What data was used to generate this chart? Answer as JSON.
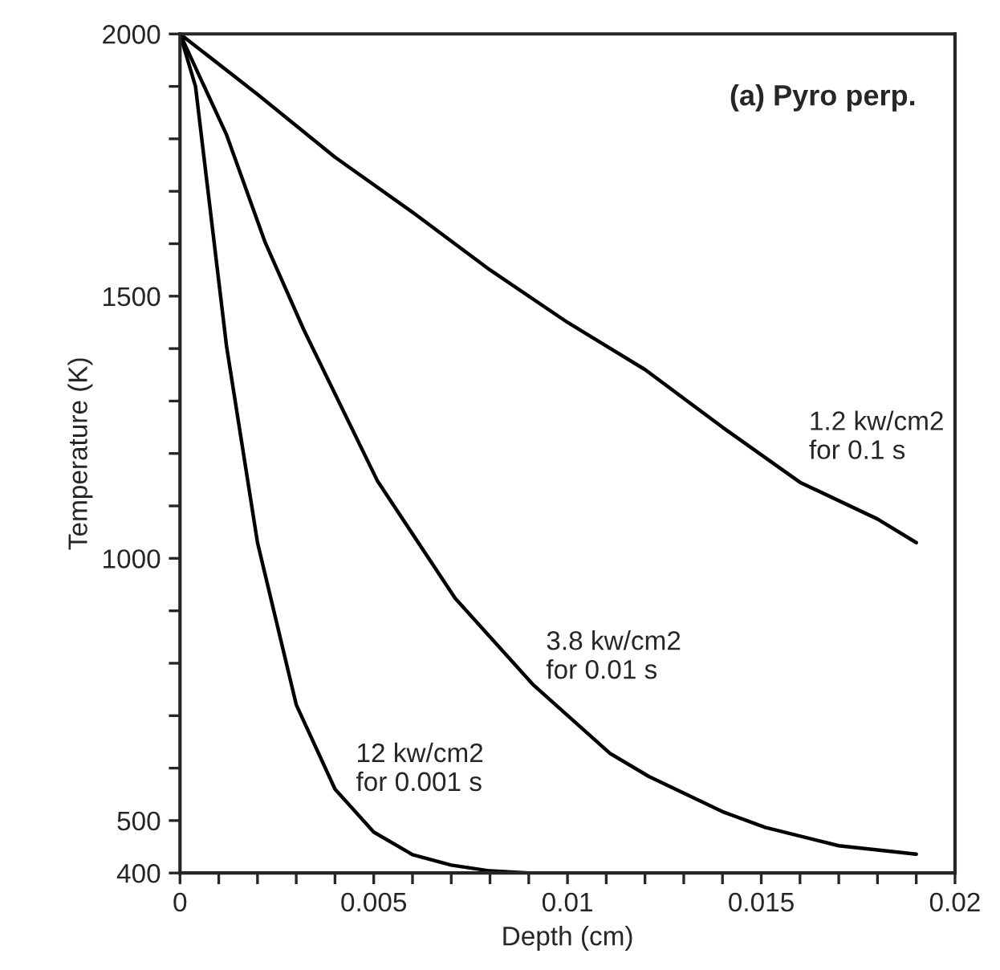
{
  "chart_data": {
    "type": "line",
    "title": "(a) Pyro perp.",
    "xlabel": "Depth (cm)",
    "ylabel": "Temperature (K)",
    "xlim": [
      0,
      0.02
    ],
    "ylim": [
      400,
      2000
    ],
    "xticks": [
      0,
      {
        "value": 0.001,
        "label": null
      },
      {
        "value": 0.002,
        "label": null
      },
      {
        "value": 0.003,
        "label": null
      },
      {
        "value": 0.004,
        "label": null
      },
      0.005,
      {
        "value": 0.006,
        "label": null
      },
      {
        "value": 0.007,
        "label": null
      },
      {
        "value": 0.008,
        "label": null
      },
      {
        "value": 0.009,
        "label": null
      },
      0.01,
      {
        "value": 0.011,
        "label": null
      },
      {
        "value": 0.012,
        "label": null
      },
      {
        "value": 0.013,
        "label": null
      },
      {
        "value": 0.014,
        "label": null
      },
      0.015,
      {
        "value": 0.016,
        "label": null
      },
      {
        "value": 0.017,
        "label": null
      },
      {
        "value": 0.018,
        "label": null
      },
      {
        "value": 0.019,
        "label": null
      },
      0.02
    ],
    "yticks": [
      400,
      500,
      {
        "value": 600,
        "label": null
      },
      {
        "value": 700,
        "label": null
      },
      {
        "value": 800,
        "label": null
      },
      {
        "value": 900,
        "label": null
      },
      1000,
      {
        "value": 1100,
        "label": null
      },
      {
        "value": 1200,
        "label": null
      },
      {
        "value": 1300,
        "label": null
      },
      {
        "value": 1400,
        "label": null
      },
      1500,
      {
        "value": 1600,
        "label": null
      },
      {
        "value": 1700,
        "label": null
      },
      {
        "value": 1800,
        "label": null
      },
      {
        "value": 1900,
        "label": null
      },
      2000
    ],
    "grid": false,
    "legend": false,
    "marker": "none",
    "line_style": "solid",
    "series": [
      {
        "name": "1.2 kw/cm2\nfor 0.1 s",
        "color": "#000000",
        "x": [
          0,
          0.002,
          0.004,
          0.006,
          0.008,
          0.01,
          0.012,
          0.014,
          0.016,
          0.018,
          0.019
        ],
        "values": [
          2000,
          1885,
          1765,
          1660,
          1550,
          1450,
          1360,
          1250,
          1145,
          1075,
          1030
        ]
      },
      {
        "name": "3.8 kw/cm2\nfor 0.01 s",
        "color": "#000000",
        "x": [
          0,
          0.0012,
          0.0022,
          0.0032,
          0.0051,
          0.0071,
          0.0091,
          0.0111,
          0.0121,
          0.014,
          0.0151,
          0.017,
          0.019
        ],
        "values": [
          2000,
          1808,
          1602,
          1435,
          1147,
          924,
          760,
          628,
          584,
          517,
          487,
          452,
          436
        ]
      },
      {
        "name": "12 kw/cm2\nfor 0.001 s",
        "color": "#000000",
        "x": [
          0,
          0.0004,
          0.0012,
          0.002,
          0.003,
          0.004,
          0.005,
          0.006,
          0.007,
          0.008,
          0.009,
          0.019
        ],
        "values": [
          2000,
          1900,
          1405,
          1030,
          721,
          560,
          478,
          435,
          415,
          404,
          400,
          400
        ]
      }
    ]
  }
}
